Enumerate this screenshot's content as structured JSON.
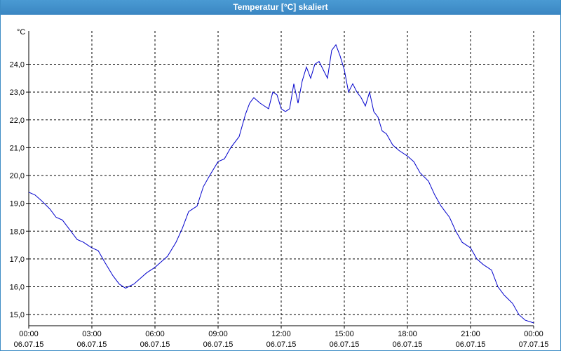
{
  "window": {
    "title": "Temperatur [°C] skaliert"
  },
  "colors": {
    "title_bar": "#3a86c2",
    "line": "#0000cc",
    "grid": "#000000"
  },
  "chart_data": {
    "type": "line",
    "title": "Temperatur [°C] skaliert",
    "ylabel": "°C",
    "xlabel": "",
    "ylim": [
      14.6,
      25.2
    ],
    "grid": true,
    "xlim": [
      "06.07.15 00:00",
      "07.07.15 00:00"
    ],
    "yticks": [
      "15,0",
      "16,0",
      "17,0",
      "18,0",
      "19,0",
      "20,0",
      "21,0",
      "22,0",
      "23,0",
      "24,0"
    ],
    "ytick_values": [
      15,
      16,
      17,
      18,
      19,
      20,
      21,
      22,
      23,
      24
    ],
    "xticks": [
      {
        "time": "00:00",
        "date": "06.07.15"
      },
      {
        "time": "03:00",
        "date": "06.07.15"
      },
      {
        "time": "06:00",
        "date": "06.07.15"
      },
      {
        "time": "09:00",
        "date": "06.07.15"
      },
      {
        "time": "12:00",
        "date": "06.07.15"
      },
      {
        "time": "15:00",
        "date": "06.07.15"
      },
      {
        "time": "18:00",
        "date": "06.07.15"
      },
      {
        "time": "21:00",
        "date": "06.07.15"
      },
      {
        "time": "00:00",
        "date": "07.07.15"
      }
    ],
    "xtick_hours": [
      0,
      3,
      6,
      9,
      12,
      15,
      18,
      21,
      24
    ],
    "series": [
      {
        "x": [
          0,
          0.3,
          0.6,
          1.0,
          1.3,
          1.6,
          2.0,
          2.3,
          2.6,
          3.0,
          3.3,
          3.6,
          4.0,
          4.3,
          4.6,
          5.0,
          5.3,
          5.6,
          6.0,
          6.3,
          6.6,
          7.0,
          7.3,
          7.6,
          8.0,
          8.3,
          8.6,
          9.0,
          9.3,
          9.6,
          10.0,
          10.3,
          10.5,
          10.7,
          11.0,
          11.2,
          11.4,
          11.6,
          11.8,
          12.0,
          12.2,
          12.4,
          12.6,
          12.8,
          13.0,
          13.2,
          13.4,
          13.6,
          13.8,
          14.0,
          14.2,
          14.4,
          14.6,
          14.8,
          15.0,
          15.2,
          15.4,
          15.6,
          15.8,
          16.0,
          16.2,
          16.4,
          16.6,
          16.8,
          17.0,
          17.3,
          17.6,
          18.0,
          18.3,
          18.6,
          19.0,
          19.3,
          19.6,
          20.0,
          20.3,
          20.6,
          21.0,
          21.3,
          21.6,
          22.0,
          22.3,
          22.6,
          23.0,
          23.3,
          23.6,
          24.0
        ],
        "y": [
          19.4,
          19.3,
          19.1,
          18.8,
          18.5,
          18.4,
          18.0,
          17.7,
          17.6,
          17.4,
          17.3,
          16.9,
          16.4,
          16.1,
          15.95,
          16.1,
          16.3,
          16.5,
          16.7,
          16.9,
          17.1,
          17.6,
          18.1,
          18.7,
          18.9,
          19.6,
          20.0,
          20.5,
          20.6,
          21.0,
          21.4,
          22.2,
          22.6,
          22.8,
          22.6,
          22.5,
          22.4,
          23.0,
          22.9,
          22.4,
          22.3,
          22.4,
          23.3,
          22.6,
          23.4,
          23.9,
          23.5,
          24.0,
          24.1,
          23.8,
          23.5,
          24.5,
          24.7,
          24.3,
          23.8,
          23.0,
          23.3,
          23.0,
          22.8,
          22.5,
          23.0,
          22.3,
          22.1,
          21.6,
          21.5,
          21.1,
          20.9,
          20.7,
          20.5,
          20.1,
          19.8,
          19.3,
          18.9,
          18.5,
          18.0,
          17.6,
          17.4,
          17.0,
          16.8,
          16.6,
          16.0,
          15.7,
          15.4,
          15.0,
          14.8,
          14.7
        ]
      }
    ]
  }
}
